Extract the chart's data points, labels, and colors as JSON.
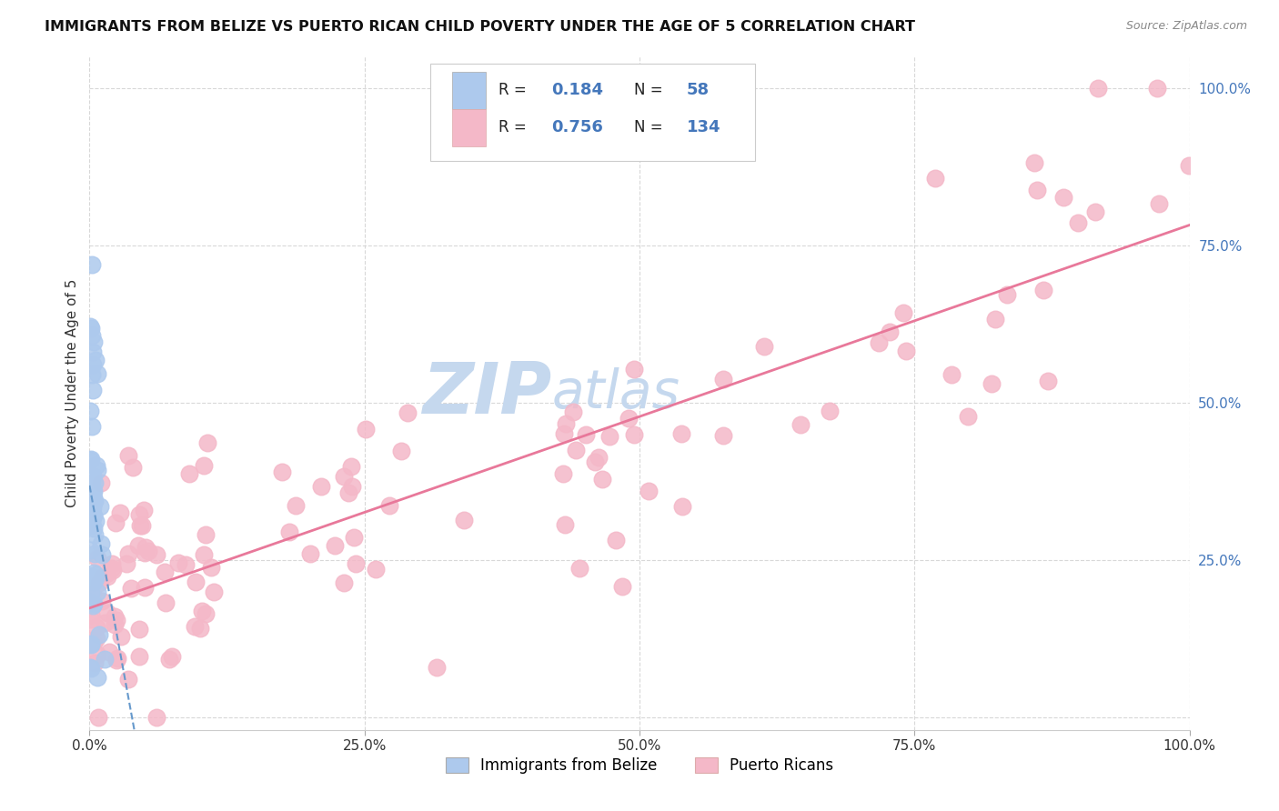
{
  "title": "IMMIGRANTS FROM BELIZE VS PUERTO RICAN CHILD POVERTY UNDER THE AGE OF 5 CORRELATION CHART",
  "source": "Source: ZipAtlas.com",
  "ylabel": "Child Poverty Under the Age of 5",
  "xticklabels": [
    "0.0%",
    "25.0%",
    "50.0%",
    "75.0%",
    "100.0%"
  ],
  "yticklabels_right": [
    "25.0%",
    "50.0%",
    "75.0%",
    "100.0%"
  ],
  "xticks": [
    0.0,
    0.25,
    0.5,
    0.75,
    1.0
  ],
  "yticks_right": [
    0.25,
    0.5,
    0.75,
    1.0
  ],
  "xlim": [
    0.0,
    1.0
  ],
  "ylim": [
    -0.02,
    1.05
  ],
  "belize_R": 0.184,
  "belize_N": 58,
  "puertorico_R": 0.756,
  "puertorico_N": 134,
  "belize_color": "#adc9ed",
  "belize_edge": "#adc9ed",
  "puertorico_color": "#f4b8c8",
  "puertorico_edge": "#f4b8c8",
  "trendline_belize_color": "#6699cc",
  "trendline_pr_color": "#e8789a",
  "watermark_zip": "ZIP",
  "watermark_atlas": "atlas",
  "watermark_color_zip": "#c5d8ee",
  "watermark_color_atlas": "#c5d8ee",
  "background_color": "#ffffff",
  "grid_color": "#d8d8d8",
  "right_tick_color": "#4477bb",
  "legend_box_color": "#f0f0f0",
  "legend_box_edge": "#cccccc"
}
